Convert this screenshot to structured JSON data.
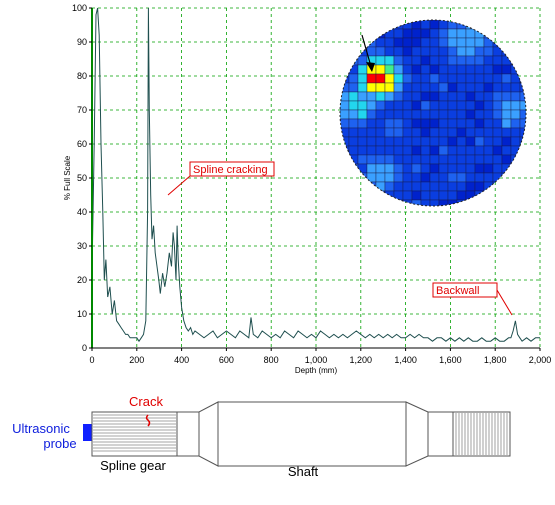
{
  "chart_data": {
    "type": "line",
    "xlabel": "Depth (mm)",
    "ylabel": "% Full Scale",
    "xlim": [
      0,
      2000
    ],
    "ylim": [
      0,
      100
    ],
    "x_ticks": [
      0,
      200,
      400,
      600,
      800,
      1000,
      1200,
      1400,
      1600,
      1800,
      2000
    ],
    "x_tick_labels": [
      "0",
      "200",
      "400",
      "600",
      "800",
      "1,000",
      "1,200",
      "1,400",
      "1,600",
      "1,800",
      "2,000"
    ],
    "y_ticks": [
      0,
      10,
      20,
      30,
      40,
      50,
      60,
      70,
      80,
      90,
      100
    ],
    "y_tick_labels": [
      "0",
      "10",
      "20",
      "30",
      "40",
      "50",
      "60",
      "70",
      "80",
      "90",
      "100"
    ],
    "grid": true,
    "series": [
      {
        "color": "#1f4f4f",
        "x": [
          0,
          10,
          18,
          25,
          32,
          40,
          48,
          55,
          62,
          70,
          80,
          90,
          100,
          110,
          120,
          130,
          140,
          150,
          160,
          170,
          180,
          190,
          200,
          210,
          220,
          230,
          240,
          248,
          252,
          256,
          262,
          268,
          275,
          282,
          290,
          298,
          305,
          315,
          325,
          335,
          345,
          355,
          362,
          368,
          375,
          380,
          385,
          392,
          400,
          410,
          420,
          430,
          440,
          450,
          460,
          480,
          500,
          520,
          540,
          560,
          580,
          600,
          620,
          640,
          660,
          680,
          700,
          710,
          720,
          740,
          760,
          780,
          800,
          820,
          840,
          860,
          880,
          900,
          920,
          940,
          960,
          980,
          1000,
          1020,
          1040,
          1060,
          1080,
          1100,
          1120,
          1140,
          1160,
          1180,
          1200,
          1220,
          1240,
          1260,
          1280,
          1300,
          1320,
          1340,
          1360,
          1380,
          1400,
          1420,
          1440,
          1460,
          1480,
          1500,
          1520,
          1540,
          1560,
          1580,
          1600,
          1620,
          1640,
          1660,
          1680,
          1700,
          1720,
          1740,
          1760,
          1780,
          1800,
          1820,
          1840,
          1860,
          1870,
          1880,
          1890,
          1900,
          1910,
          1920,
          1940,
          1960,
          1980,
          2000
        ],
        "y": [
          22,
          60,
          98,
          100,
          92,
          60,
          40,
          20,
          26,
          15,
          18,
          10,
          14,
          8,
          7,
          6,
          5,
          4,
          4,
          3,
          3,
          3,
          3,
          2,
          3,
          4,
          8,
          40,
          100,
          70,
          45,
          32,
          36,
          28,
          24,
          20,
          16,
          22,
          18,
          22,
          28,
          24,
          34,
          30,
          20,
          36,
          26,
          18,
          12,
          8,
          6,
          5,
          6,
          4,
          5,
          4,
          3,
          4,
          5,
          3,
          4,
          5,
          4,
          3,
          5,
          4,
          3,
          9,
          4,
          3,
          5,
          4,
          3,
          4,
          3,
          5,
          4,
          3,
          5,
          4,
          3,
          4,
          3,
          5,
          4,
          3,
          4,
          3,
          4,
          3,
          4,
          5,
          4,
          3,
          4,
          3,
          4,
          3,
          4,
          3,
          4,
          3,
          3,
          4,
          3,
          4,
          3,
          3,
          2,
          3,
          3,
          2,
          3,
          2,
          3,
          2,
          3,
          2,
          2,
          3,
          2,
          2,
          3,
          2,
          2,
          3,
          3,
          5,
          8,
          4,
          3,
          2,
          3,
          2,
          3,
          3
        ]
      }
    ],
    "annotations": [
      {
        "text": "Spline cracking",
        "x": 330,
        "y": 75
      },
      {
        "text": "Backwall",
        "x": 1920,
        "y": 25
      }
    ]
  },
  "inset": {
    "name": "C-scan map",
    "palette": [
      "#0022cc",
      "#0a3ee0",
      "#1e62f0",
      "#3aa0ff",
      "#22d6ee",
      "#44ee88",
      "#ffff00",
      "#ff0000"
    ]
  },
  "diagram": {
    "crack_label": "Crack",
    "probe_label_line1": "Ultrasonic",
    "probe_label_line2": "probe",
    "spline_label": "Spline gear",
    "shaft_label": "Shaft"
  }
}
